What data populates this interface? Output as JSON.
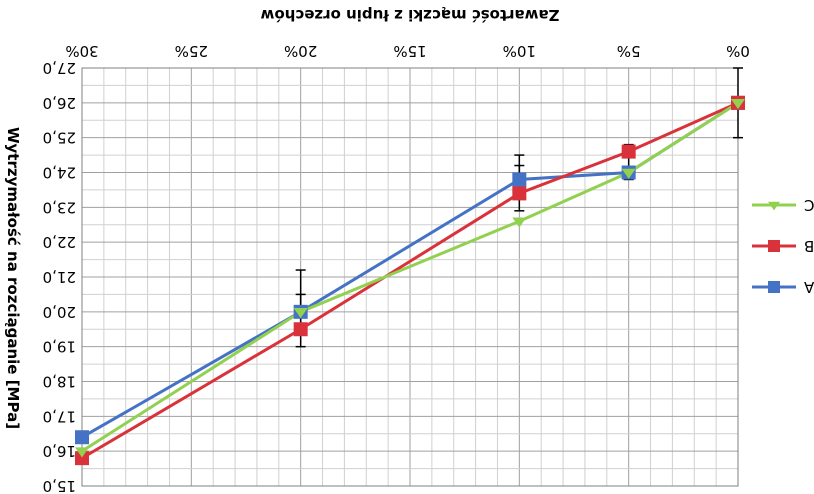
{
  "chart_data": {
    "type": "line",
    "title": "",
    "xlabel": "Zawartość mączki z łupin orzechów",
    "ylabel": "Wytrzymałość na rozciąganie [MPa]",
    "xlim": [
      0,
      30
    ],
    "ylim": [
      15,
      27
    ],
    "x_ticks": [
      0,
      5,
      10,
      15,
      20,
      25,
      30
    ],
    "x_tick_labels": [
      "0%",
      "5%",
      "10%",
      "15%",
      "20%",
      "25%",
      "30%"
    ],
    "y_ticks": [
      15,
      16,
      17,
      18,
      19,
      20,
      21,
      22,
      23,
      24,
      25,
      26,
      27
    ],
    "y_tick_labels": [
      "15,0",
      "16,0",
      "17,0",
      "18,0",
      "19,0",
      "20,0",
      "21,0",
      "22,0",
      "23,0",
      "24,0",
      "25,0",
      "26,0",
      "27,0"
    ],
    "x": [
      0,
      5,
      10,
      20,
      30
    ],
    "series": [
      {
        "name": "A",
        "color": "#4472C4",
        "marker": "square",
        "values": [
          26.0,
          24.0,
          23.8,
          20.0,
          16.4
        ],
        "error_bars": [
          {
            "x": 0,
            "low": 26.0,
            "high": 26.0
          },
          {
            "x": 5,
            "low": 24.0,
            "high": 24.0
          },
          {
            "x": 10,
            "low": 23.5,
            "high": 24.2
          },
          {
            "x": 20,
            "low": 19.5,
            "high": 20.5
          },
          {
            "x": 30,
            "low": 16.4,
            "high": 16.4
          }
        ]
      },
      {
        "name": "B",
        "color": "#D9323A",
        "marker": "square",
        "values": [
          26.0,
          24.6,
          23.4,
          19.5,
          15.8
        ],
        "error_bars": [
          {
            "x": 0,
            "low": 25.0,
            "high": 27.0
          },
          {
            "x": 5,
            "low": 23.8,
            "high": 24.8
          },
          {
            "x": 10,
            "low": 22.9,
            "high": 24.5
          },
          {
            "x": 20,
            "low": 19.0,
            "high": 21.2
          },
          {
            "x": 30,
            "low": 15.8,
            "high": 15.8
          }
        ]
      },
      {
        "name": "C",
        "color": "#92D050",
        "marker": "triangle",
        "values": [
          26.0,
          24.0,
          22.6,
          20.0,
          16.0
        ]
      }
    ],
    "legend_position": "right",
    "grid": true
  }
}
